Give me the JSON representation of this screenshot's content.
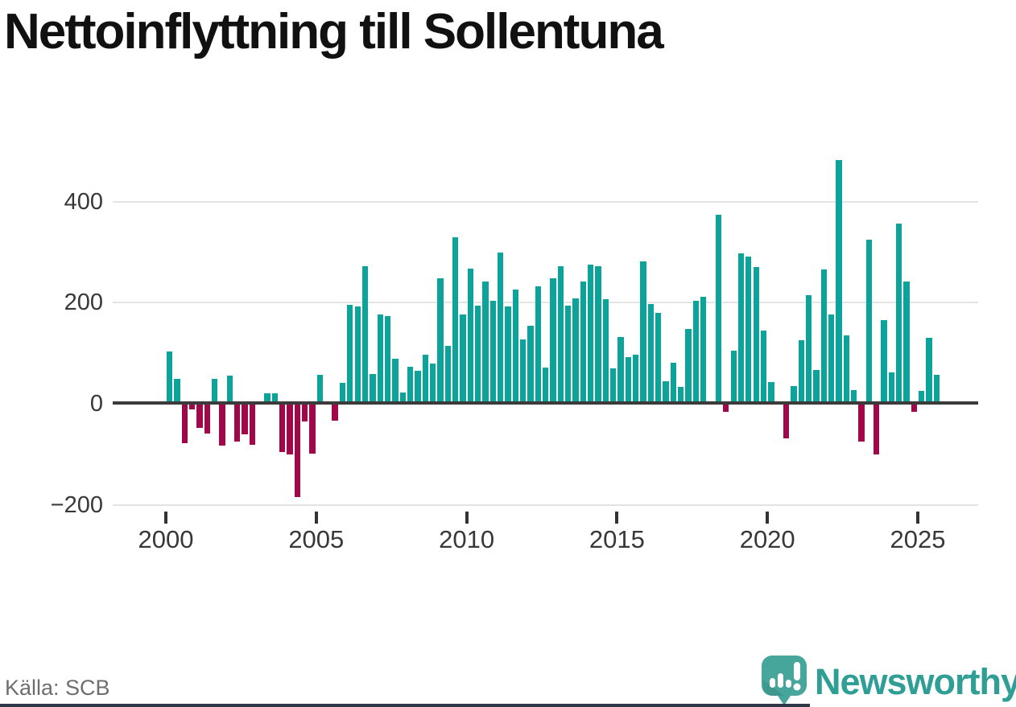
{
  "title": "Nettoinflyttning till Sollentuna",
  "source": "Källa: SCB",
  "logo": {
    "text": "Newsworthy",
    "color": "#2f9e95",
    "icon": "newsworthy-speech-bubble-chart-icon",
    "icon_color": "#46a69c",
    "icon_shade_color": "#3a8d84"
  },
  "colors": {
    "positive": "#0ba39a",
    "negative": "#a1084a",
    "zero_line": "#3b3b3b",
    "gridline": "#e4e4e4",
    "axis_text": "#383838",
    "title_text": "#111111",
    "source_text": "#6e6e6e",
    "bottom_bar": "#2d3748"
  },
  "chart_data": {
    "type": "bar",
    "title": "Nettoinflyttning till Sollentuna",
    "xlabel": "",
    "ylabel": "",
    "x_unit": "quarter",
    "ylim": [
      -200,
      500
    ],
    "y_ticks": [
      400,
      200,
      0,
      -200
    ],
    "x_ticks": [
      2000,
      2005,
      2010,
      2015,
      2020,
      2025
    ],
    "grid": "horizontal",
    "legend": "none",
    "categories": [
      "2000-Q1",
      "2000-Q2",
      "2000-Q3",
      "2000-Q4",
      "2001-Q1",
      "2001-Q2",
      "2001-Q3",
      "2001-Q4",
      "2002-Q1",
      "2002-Q2",
      "2002-Q3",
      "2002-Q4",
      "2003-Q1",
      "2003-Q2",
      "2003-Q3",
      "2003-Q4",
      "2004-Q1",
      "2004-Q2",
      "2004-Q3",
      "2004-Q4",
      "2005-Q1",
      "2005-Q2",
      "2005-Q3",
      "2005-Q4",
      "2006-Q1",
      "2006-Q2",
      "2006-Q3",
      "2006-Q4",
      "2007-Q1",
      "2007-Q2",
      "2007-Q3",
      "2007-Q4",
      "2008-Q1",
      "2008-Q2",
      "2008-Q3",
      "2008-Q4",
      "2009-Q1",
      "2009-Q2",
      "2009-Q3",
      "2009-Q4",
      "2010-Q1",
      "2010-Q2",
      "2010-Q3",
      "2010-Q4",
      "2011-Q1",
      "2011-Q2",
      "2011-Q3",
      "2011-Q4",
      "2012-Q1",
      "2012-Q2",
      "2012-Q3",
      "2012-Q4",
      "2013-Q1",
      "2013-Q2",
      "2013-Q3",
      "2013-Q4",
      "2014-Q1",
      "2014-Q2",
      "2014-Q3",
      "2014-Q4",
      "2015-Q1",
      "2015-Q2",
      "2015-Q3",
      "2015-Q4",
      "2016-Q1",
      "2016-Q2",
      "2016-Q3",
      "2016-Q4",
      "2017-Q1",
      "2017-Q2",
      "2017-Q3",
      "2017-Q4",
      "2018-Q1",
      "2018-Q2",
      "2018-Q3",
      "2018-Q4",
      "2019-Q1",
      "2019-Q2",
      "2019-Q3",
      "2019-Q4",
      "2020-Q1",
      "2020-Q2",
      "2020-Q3",
      "2020-Q4",
      "2021-Q1",
      "2021-Q2",
      "2021-Q3",
      "2021-Q4",
      "2022-Q1",
      "2022-Q2",
      "2022-Q3",
      "2022-Q4",
      "2023-Q1",
      "2023-Q2",
      "2023-Q3",
      "2023-Q4",
      "2024-Q1",
      "2024-Q2",
      "2024-Q3",
      "2024-Q4",
      "2025-Q1",
      "2025-Q2",
      "2025-Q3"
    ],
    "values": [
      104,
      49,
      -77,
      -10,
      -46,
      -57,
      50,
      -81,
      55,
      -73,
      -59,
      -79,
      0,
      20,
      20,
      -94,
      -98,
      -183,
      -33,
      -97,
      58,
      0,
      -31,
      42,
      195,
      192,
      272,
      59,
      177,
      174,
      89,
      23,
      73,
      65,
      97,
      80,
      248,
      114,
      330,
      177,
      267,
      194,
      242,
      204,
      300,
      193,
      226,
      127,
      154,
      232,
      71,
      248,
      272,
      194,
      208,
      242,
      276,
      272,
      207,
      70,
      132,
      92,
      97,
      282,
      198,
      180,
      45,
      81,
      33,
      148,
      204,
      212,
      0,
      374,
      -14,
      105,
      297,
      292,
      271,
      145,
      43,
      0,
      -67,
      35,
      125,
      215,
      67,
      266,
      176,
      482,
      135,
      27,
      -73,
      325,
      -98,
      165,
      62,
      357,
      242,
      -14,
      25,
      130,
      58
    ]
  }
}
